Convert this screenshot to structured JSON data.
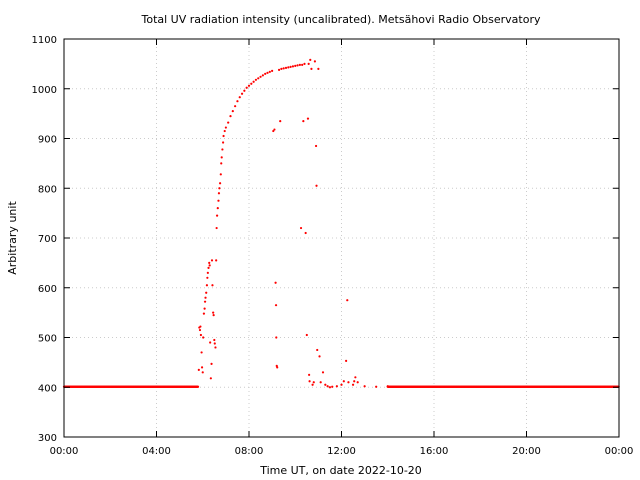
{
  "chart_data": {
    "type": "scatter",
    "title": "Total UV radiation intensity (uncalibrated). Metsähovi Radio Observatory",
    "xlabel": "Time UT, on date 2022-10-20",
    "ylabel": "Arbitrary unit",
    "xlim": [
      0,
      24
    ],
    "ylim": [
      300,
      1100
    ],
    "x_ticks": [
      0,
      4,
      8,
      12,
      16,
      20,
      24
    ],
    "x_tick_labels": [
      "00:00",
      "04:00",
      "08:00",
      "12:00",
      "16:00",
      "20:00",
      "00:00"
    ],
    "y_ticks": [
      300,
      400,
      500,
      600,
      700,
      800,
      900,
      1000,
      1100
    ],
    "y_tick_labels": [
      "300",
      "400",
      "500",
      "600",
      "700",
      "800",
      "900",
      "1000",
      "1100"
    ],
    "grid": true,
    "legend": "none",
    "point_color": "#ff0000",
    "series": [
      {
        "name": "",
        "points": [
          [
            5.83,
            435
          ],
          [
            5.85,
            520
          ],
          [
            5.88,
            515
          ],
          [
            5.9,
            522
          ],
          [
            5.92,
            505
          ],
          [
            5.95,
            470
          ],
          [
            5.97,
            440
          ],
          [
            6.0,
            430
          ],
          [
            6.02,
            500
          ],
          [
            6.05,
            548
          ],
          [
            6.08,
            558
          ],
          [
            6.1,
            572
          ],
          [
            6.12,
            580
          ],
          [
            6.15,
            590
          ],
          [
            6.18,
            605
          ],
          [
            6.2,
            620
          ],
          [
            6.22,
            630
          ],
          [
            6.25,
            640
          ],
          [
            6.28,
            650
          ],
          [
            6.3,
            645
          ],
          [
            6.32,
            490
          ],
          [
            6.35,
            418
          ],
          [
            6.38,
            447
          ],
          [
            6.4,
            655
          ],
          [
            6.42,
            605
          ],
          [
            6.45,
            550
          ],
          [
            6.47,
            545
          ],
          [
            6.5,
            495
          ],
          [
            6.52,
            488
          ],
          [
            6.55,
            480
          ],
          [
            6.58,
            655
          ],
          [
            6.6,
            720
          ],
          [
            6.62,
            745
          ],
          [
            6.65,
            760
          ],
          [
            6.68,
            775
          ],
          [
            6.7,
            790
          ],
          [
            6.72,
            800
          ],
          [
            6.75,
            810
          ],
          [
            6.78,
            828
          ],
          [
            6.8,
            850
          ],
          [
            6.82,
            862
          ],
          [
            6.85,
            878
          ],
          [
            6.88,
            892
          ],
          [
            6.9,
            905
          ],
          [
            6.95,
            915
          ],
          [
            7.0,
            922
          ],
          [
            7.1,
            932
          ],
          [
            7.2,
            945
          ],
          [
            7.3,
            955
          ],
          [
            7.4,
            965
          ],
          [
            7.5,
            975
          ],
          [
            7.6,
            983
          ],
          [
            7.7,
            990
          ],
          [
            7.8,
            996
          ],
          [
            7.9,
            1002
          ],
          [
            8.0,
            1006
          ],
          [
            8.1,
            1010
          ],
          [
            8.2,
            1014
          ],
          [
            8.3,
            1018
          ],
          [
            8.4,
            1021
          ],
          [
            8.5,
            1024
          ],
          [
            8.6,
            1027
          ],
          [
            8.7,
            1030
          ],
          [
            8.8,
            1032
          ],
          [
            8.9,
            1034
          ],
          [
            9.0,
            1036
          ],
          [
            9.05,
            915
          ],
          [
            9.1,
            918
          ],
          [
            9.15,
            610
          ],
          [
            9.17,
            565
          ],
          [
            9.18,
            500
          ],
          [
            9.2,
            443
          ],
          [
            9.22,
            440
          ],
          [
            9.3,
            1038
          ],
          [
            9.35,
            935
          ],
          [
            9.4,
            1040
          ],
          [
            9.5,
            1041
          ],
          [
            9.6,
            1042
          ],
          [
            9.7,
            1043
          ],
          [
            9.8,
            1044
          ],
          [
            9.9,
            1045
          ],
          [
            10.0,
            1046
          ],
          [
            10.1,
            1047
          ],
          [
            10.2,
            1048
          ],
          [
            10.25,
            720
          ],
          [
            10.3,
            1048
          ],
          [
            10.35,
            935
          ],
          [
            10.4,
            1050
          ],
          [
            10.45,
            710
          ],
          [
            10.5,
            505
          ],
          [
            10.55,
            940
          ],
          [
            10.58,
            1050
          ],
          [
            10.6,
            425
          ],
          [
            10.62,
            412
          ],
          [
            10.65,
            1058
          ],
          [
            10.7,
            1040
          ],
          [
            10.75,
            405
          ],
          [
            10.8,
            410
          ],
          [
            10.85,
            1055
          ],
          [
            10.9,
            885
          ],
          [
            10.92,
            805
          ],
          [
            10.95,
            475
          ],
          [
            11.0,
            1040
          ],
          [
            11.05,
            462
          ],
          [
            11.1,
            410
          ],
          [
            11.2,
            430
          ],
          [
            11.3,
            405
          ],
          [
            11.4,
            402
          ],
          [
            11.5,
            400
          ],
          [
            11.6,
            401
          ],
          [
            11.8,
            402
          ],
          [
            12.0,
            405
          ],
          [
            12.1,
            412
          ],
          [
            12.2,
            453
          ],
          [
            12.25,
            575
          ],
          [
            12.3,
            410
          ],
          [
            12.5,
            405
          ],
          [
            12.55,
            412
          ],
          [
            12.6,
            420
          ],
          [
            12.7,
            410
          ],
          [
            13.0,
            402
          ],
          [
            13.5,
            401
          ],
          [
            14.0,
            402
          ]
        ]
      }
    ]
  }
}
